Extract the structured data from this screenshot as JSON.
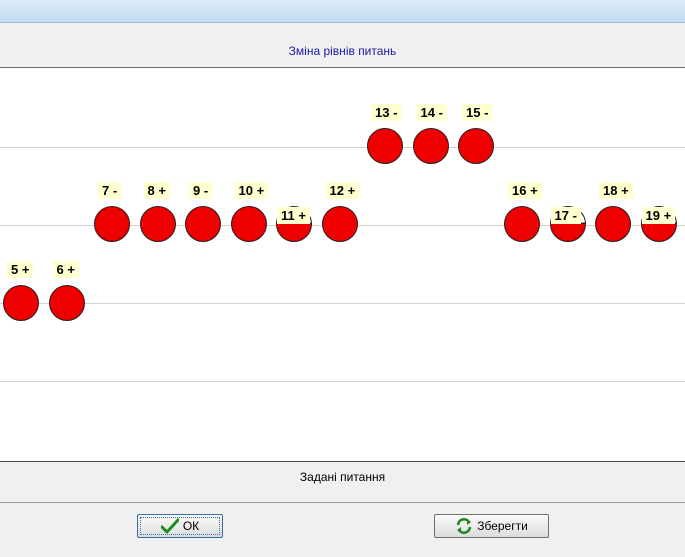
{
  "window": {
    "heading": "Зміна рівнів питань"
  },
  "chart_data": {
    "type": "scatter",
    "title": "Зміна рівнів питань",
    "xlabel": "",
    "ylabel": "",
    "levels_visible": [
      1,
      2,
      3,
      4
    ],
    "questions": [
      {
        "label": "5 +",
        "number": 5,
        "level": 1,
        "answer": "+",
        "fill": "full"
      },
      {
        "label": "6 +",
        "number": 6,
        "level": 1,
        "answer": "+",
        "fill": "full"
      },
      {
        "label": "7 -",
        "number": 7,
        "level": 2,
        "answer": "-",
        "fill": "full"
      },
      {
        "label": "8 +",
        "number": 8,
        "level": 2,
        "answer": "+",
        "fill": "full"
      },
      {
        "label": "9 -",
        "number": 9,
        "level": 2,
        "answer": "-",
        "fill": "full"
      },
      {
        "label": "10 +",
        "number": 10,
        "level": 2,
        "answer": "+",
        "fill": "full"
      },
      {
        "label": "11 +",
        "number": 11,
        "level": 2,
        "answer": "+",
        "fill": "half"
      },
      {
        "label": "12 +",
        "number": 12,
        "level": 2,
        "answer": "+",
        "fill": "full"
      },
      {
        "label": "13 -",
        "number": 13,
        "level": 3,
        "answer": "-",
        "fill": "full"
      },
      {
        "label": "14 -",
        "number": 14,
        "level": 3,
        "answer": "-",
        "fill": "full"
      },
      {
        "label": "15 -",
        "number": 15,
        "level": 3,
        "answer": "-",
        "fill": "full"
      },
      {
        "label": "16 +",
        "number": 16,
        "level": 2,
        "answer": "+",
        "fill": "full"
      },
      {
        "label": "17 -",
        "number": 17,
        "level": 2,
        "answer": "-",
        "fill": "half"
      },
      {
        "label": "18 +",
        "number": 18,
        "level": 2,
        "answer": "+",
        "fill": "full"
      },
      {
        "label": "19 +",
        "number": 19,
        "level": 2,
        "answer": "+",
        "fill": "half"
      }
    ],
    "colors": {
      "ball": "#ee0000",
      "label_bg": "#ffffd0",
      "grid": "#d2d2d2"
    }
  },
  "section": {
    "label": "Задані питання"
  },
  "buttons": {
    "ok_label": "ОК",
    "save_label": "Зберегти"
  },
  "icons": {
    "ok": "check-icon",
    "save": "refresh-icon"
  }
}
